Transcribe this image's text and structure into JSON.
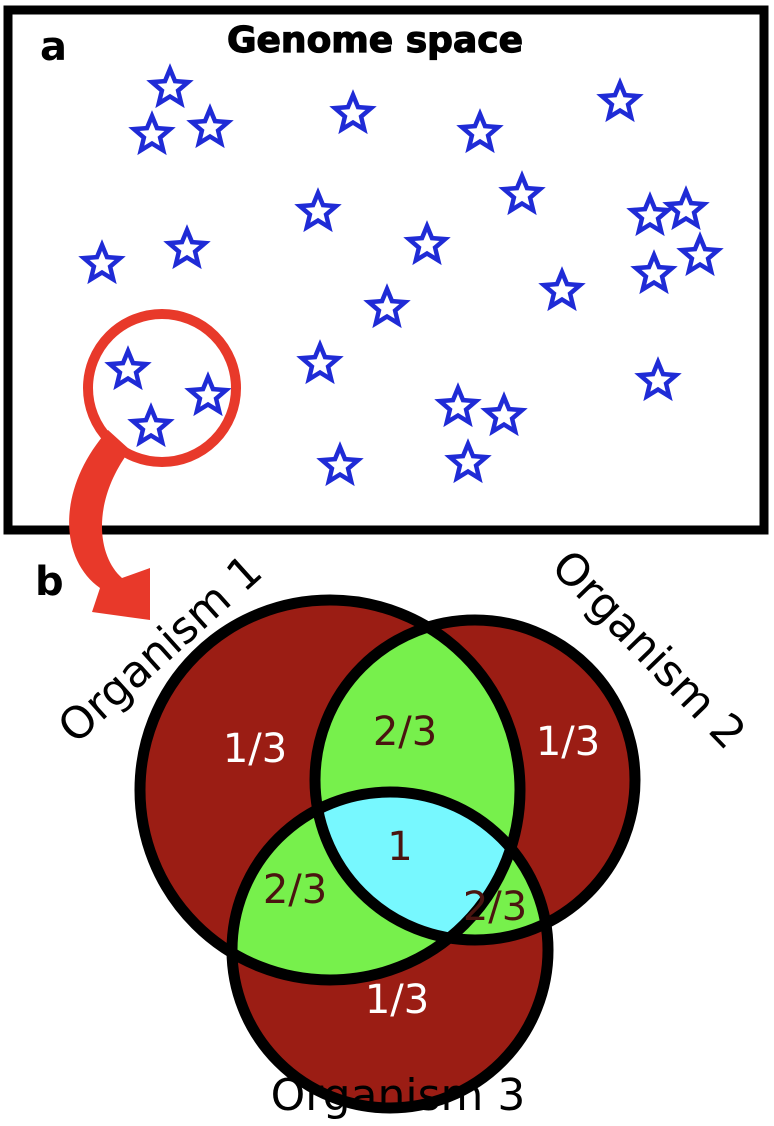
{
  "panel_a": {
    "letter": "a",
    "title": "Genome space"
  },
  "panel_b": {
    "letter": "b",
    "organism1_label": "Organism 1",
    "organism2_label": "Organism 2",
    "organism3_label": "Organism 3",
    "regions": {
      "only_1": "1/3",
      "only_2": "1/3",
      "only_3": "1/3",
      "pair_1_2": "2/3",
      "pair_1_3": "2/3",
      "pair_2_3": "2/3",
      "all_three": "1"
    }
  },
  "colors": {
    "star_outline": "#1f2bd6",
    "highlight_circle": "#e8392a",
    "unique_region": "#9b1d14",
    "pair_region": "#77f04c",
    "core_region": "#77f8ff",
    "outline": "#000000"
  }
}
